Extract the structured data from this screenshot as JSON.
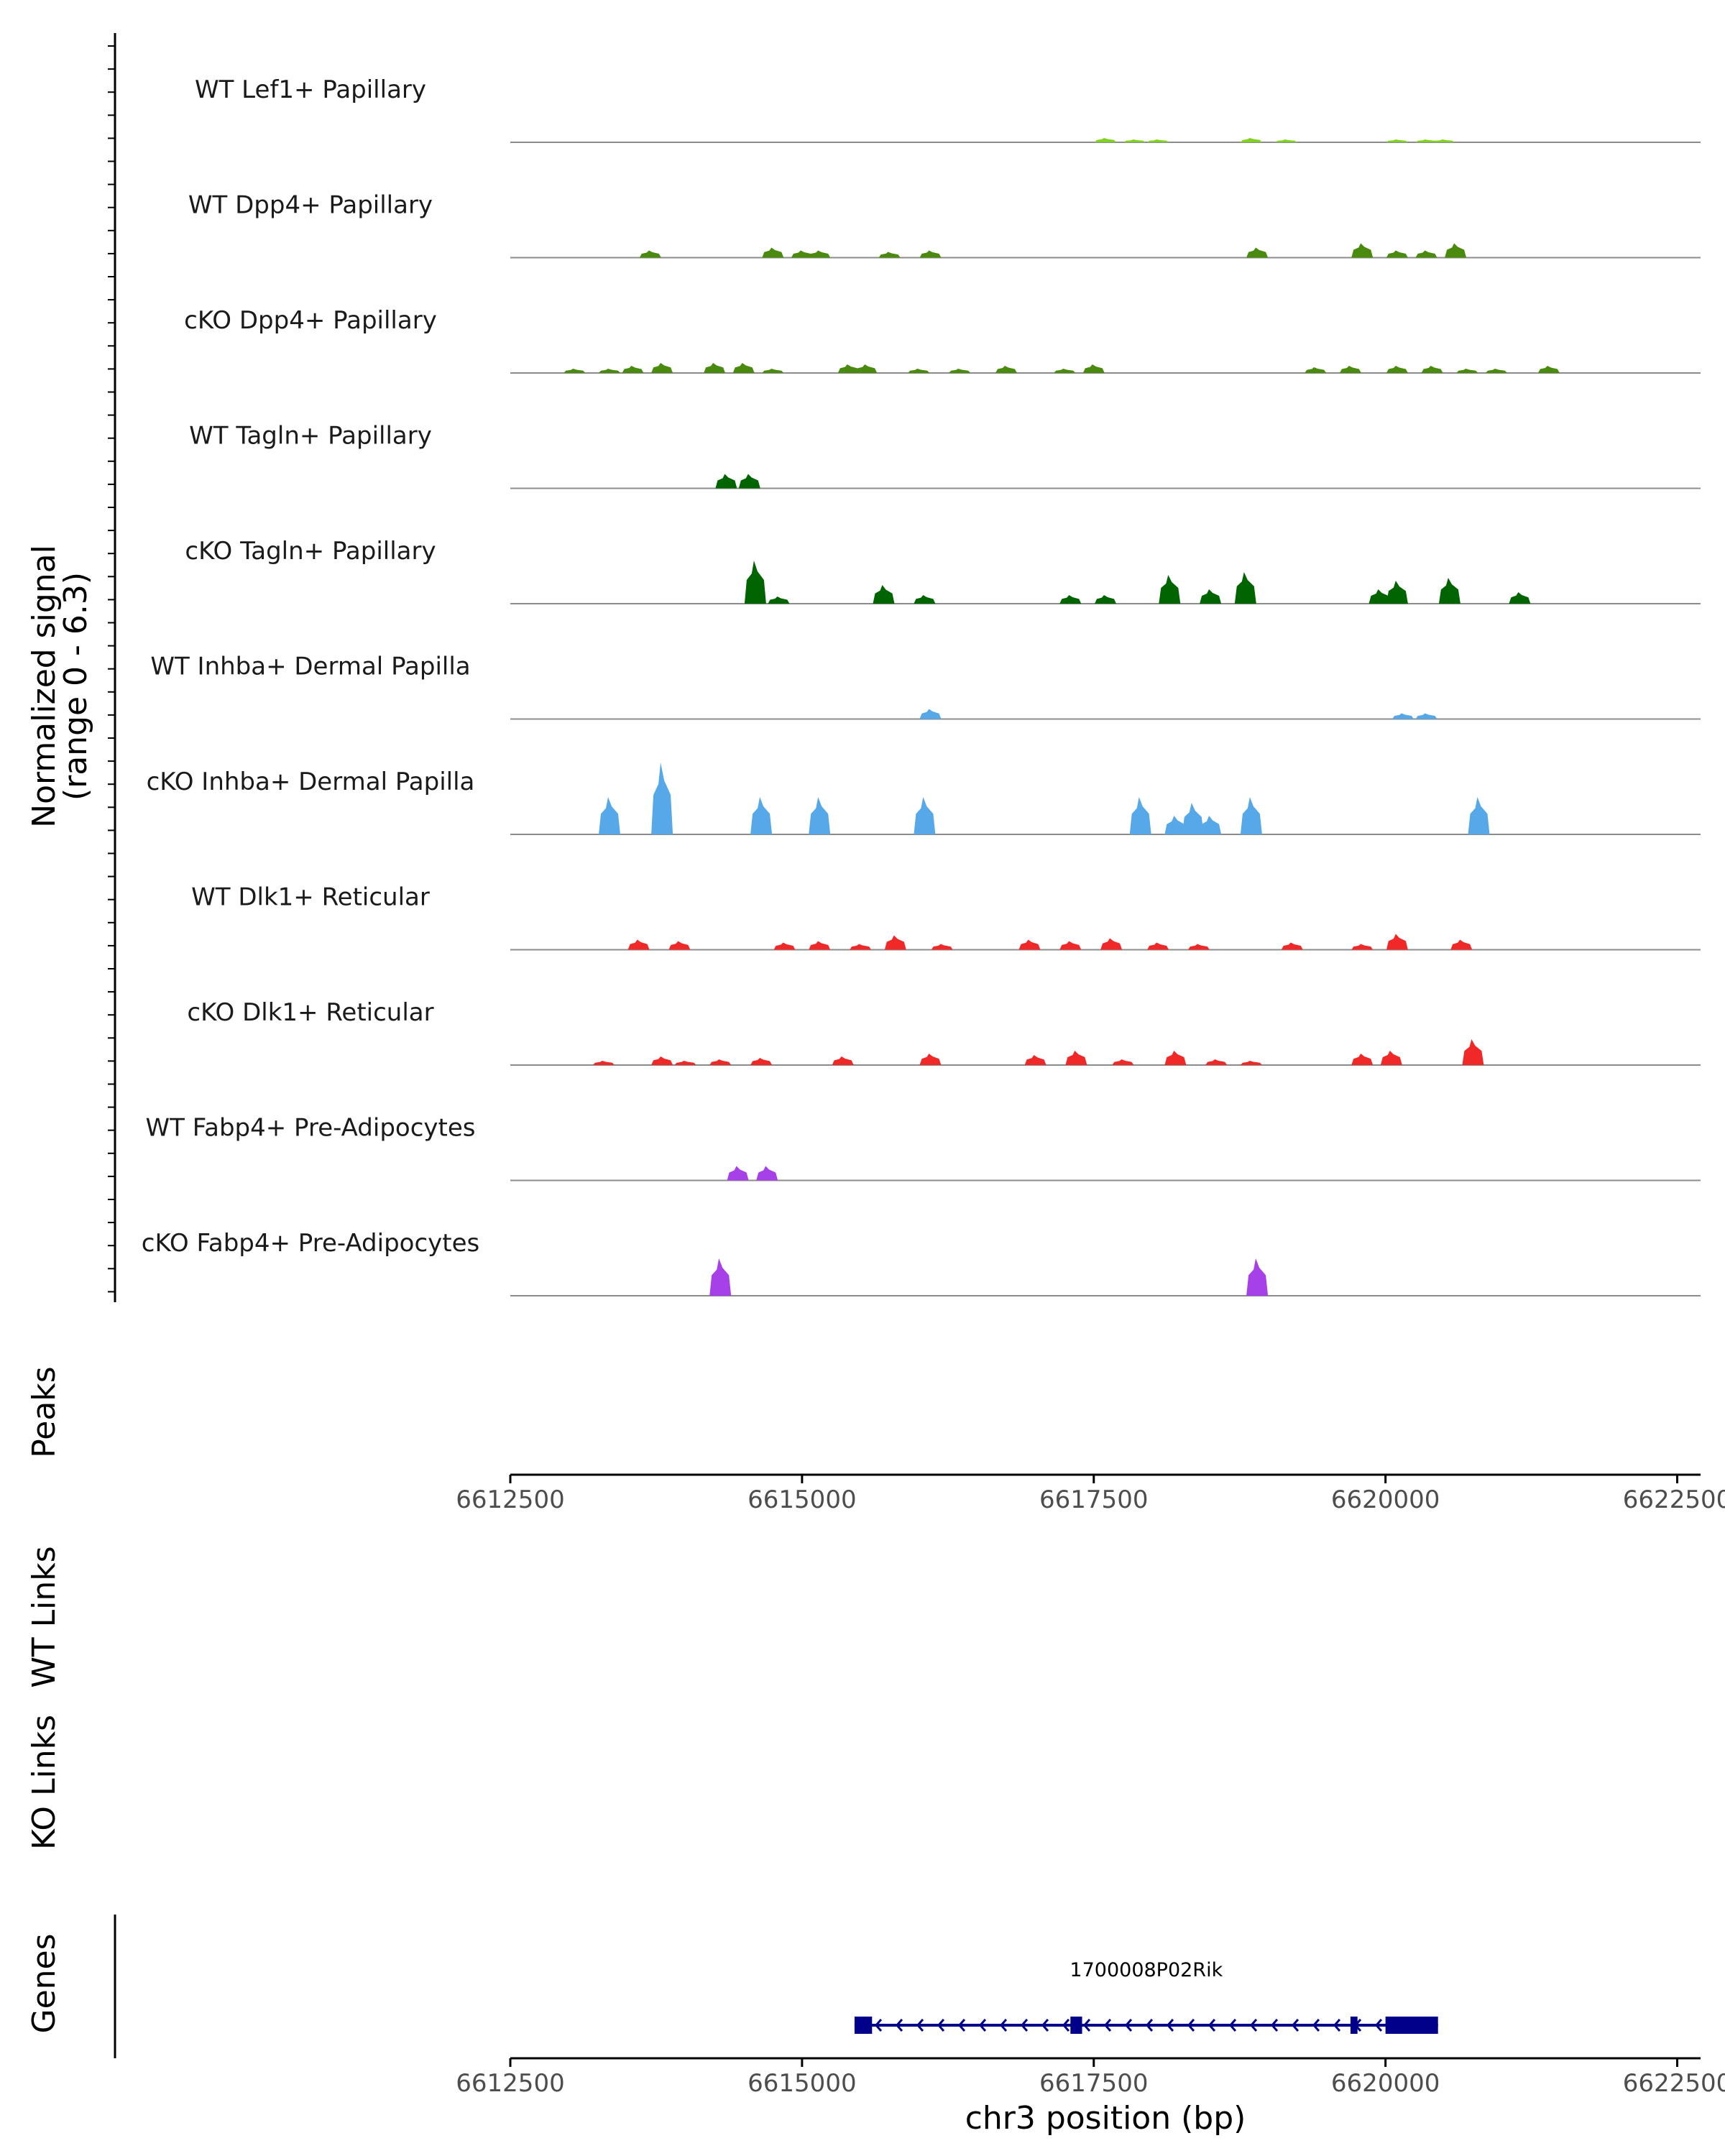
{
  "chart_data": {
    "type": "area",
    "title": "",
    "chromosome": "chr3",
    "xlabel": "chr3 position (bp)",
    "xlim": [
      6612500,
      6622700
    ],
    "xticks": [
      6612500,
      6615000,
      6617500,
      6620000,
      6622500
    ],
    "xtick_labels": [
      "6612500",
      "6615000",
      "6617500",
      "6620000",
      "6622500"
    ],
    "ylabel_line1": "Normalized signal",
    "ylabel_line2": "(range 0 - 6.3)",
    "ylim": [
      0,
      6.3
    ],
    "section_labels": {
      "peaks": "Peaks",
      "wt_links": "WT Links",
      "ko_links": "KO Links",
      "genes": "Genes"
    },
    "series": [
      {
        "name": "WT Lef1+ Papillary",
        "color": "#7FD320",
        "peaks": [
          [
            6617600,
            0.3
          ],
          [
            6617850,
            0.15
          ],
          [
            6618050,
            0.15
          ],
          [
            6618850,
            0.3
          ],
          [
            6619150,
            0.15
          ],
          [
            6620100,
            0.15
          ],
          [
            6620350,
            0.15
          ],
          [
            6620500,
            0.15
          ]
        ]
      },
      {
        "name": "WT Dpp4+ Papillary",
        "color": "#4A8A0E",
        "peaks": [
          [
            6613700,
            0.5
          ],
          [
            6614750,
            0.7
          ],
          [
            6615000,
            0.5
          ],
          [
            6615150,
            0.5
          ],
          [
            6615750,
            0.4
          ],
          [
            6616100,
            0.5
          ],
          [
            6618900,
            0.7
          ],
          [
            6619800,
            1.0
          ],
          [
            6620100,
            0.5
          ],
          [
            6620350,
            0.5
          ],
          [
            6620600,
            1.0
          ]
        ]
      },
      {
        "name": "cKO Dpp4+ Papillary",
        "color": "#4A8A0E",
        "peaks": [
          [
            6613050,
            0.3
          ],
          [
            6613350,
            0.3
          ],
          [
            6613550,
            0.5
          ],
          [
            6613800,
            0.7
          ],
          [
            6614250,
            0.7
          ],
          [
            6614500,
            0.7
          ],
          [
            6614750,
            0.3
          ],
          [
            6615400,
            0.6
          ],
          [
            6615550,
            0.6
          ],
          [
            6616000,
            0.3
          ],
          [
            6616350,
            0.3
          ],
          [
            6616750,
            0.5
          ],
          [
            6617250,
            0.3
          ],
          [
            6617500,
            0.6
          ],
          [
            6619400,
            0.4
          ],
          [
            6619700,
            0.5
          ],
          [
            6620100,
            0.5
          ],
          [
            6620400,
            0.5
          ],
          [
            6620700,
            0.3
          ],
          [
            6620950,
            0.3
          ],
          [
            6621400,
            0.5
          ]
        ]
      },
      {
        "name": "WT Tagln+ Papillary",
        "color": "#006400",
        "peaks": [
          [
            6614350,
            1.0
          ],
          [
            6614550,
            1.0
          ]
        ]
      },
      {
        "name": "cKO Tagln+ Papillary",
        "color": "#006400",
        "peaks": [
          [
            6614600,
            3.0
          ],
          [
            6614800,
            0.5
          ],
          [
            6615700,
            1.3
          ],
          [
            6616050,
            0.6
          ],
          [
            6617300,
            0.6
          ],
          [
            6617600,
            0.6
          ],
          [
            6618150,
            2.0
          ],
          [
            6618500,
            1.0
          ],
          [
            6618800,
            2.2
          ],
          [
            6619950,
            1.0
          ],
          [
            6620100,
            1.6
          ],
          [
            6620550,
            1.8
          ],
          [
            6621150,
            0.8
          ]
        ]
      },
      {
        "name": "WT Inhba+ Dermal Papilla",
        "color": "#56A8E8",
        "peaks": [
          [
            6616100,
            0.7
          ],
          [
            6620150,
            0.4
          ],
          [
            6620350,
            0.4
          ]
        ]
      },
      {
        "name": "cKO Inhba+ Dermal Papilla",
        "color": "#56A8E8",
        "peaks": [
          [
            6613350,
            2.6
          ],
          [
            6613800,
            5.0
          ],
          [
            6614650,
            2.6
          ],
          [
            6615150,
            2.6
          ],
          [
            6616050,
            2.6
          ],
          [
            6617900,
            2.6
          ],
          [
            6618200,
            1.3
          ],
          [
            6618350,
            2.2
          ],
          [
            6618500,
            1.3
          ],
          [
            6618850,
            2.6
          ],
          [
            6620800,
            2.6
          ]
        ]
      },
      {
        "name": "WT Dlk1+ Reticular",
        "color": "#F02828",
        "peaks": [
          [
            6613600,
            0.7
          ],
          [
            6613950,
            0.6
          ],
          [
            6614850,
            0.5
          ],
          [
            6615150,
            0.6
          ],
          [
            6615500,
            0.4
          ],
          [
            6615800,
            1.0
          ],
          [
            6616200,
            0.4
          ],
          [
            6616950,
            0.7
          ],
          [
            6617300,
            0.6
          ],
          [
            6617650,
            0.8
          ],
          [
            6618050,
            0.5
          ],
          [
            6618400,
            0.4
          ],
          [
            6619200,
            0.5
          ],
          [
            6619800,
            0.4
          ],
          [
            6620100,
            1.1
          ],
          [
            6620650,
            0.7
          ]
        ]
      },
      {
        "name": "cKO Dlk1+ Reticular",
        "color": "#F02828",
        "peaks": [
          [
            6613300,
            0.3
          ],
          [
            6613800,
            0.6
          ],
          [
            6614000,
            0.3
          ],
          [
            6614300,
            0.4
          ],
          [
            6614650,
            0.5
          ],
          [
            6615350,
            0.6
          ],
          [
            6616100,
            0.8
          ],
          [
            6617000,
            0.7
          ],
          [
            6617350,
            1.0
          ],
          [
            6617750,
            0.4
          ],
          [
            6618200,
            1.0
          ],
          [
            6618550,
            0.4
          ],
          [
            6618850,
            0.3
          ],
          [
            6619800,
            0.8
          ],
          [
            6620050,
            1.0
          ],
          [
            6620750,
            1.8
          ]
        ]
      },
      {
        "name": "WT Fabp4+ Pre-Adipocytes",
        "color": "#A640E8",
        "peaks": [
          [
            6614450,
            1.0
          ],
          [
            6614700,
            1.0
          ]
        ]
      },
      {
        "name": "cKO Fabp4+ Pre-Adipocytes",
        "color": "#A640E8",
        "peaks": [
          [
            6614300,
            2.6
          ],
          [
            6618900,
            2.6
          ]
        ]
      }
    ],
    "gene": {
      "name": "1700008P02Rik",
      "strand": "-",
      "start": 6615450,
      "end": 6620450,
      "exons": [
        [
          6615450,
          6615600
        ],
        [
          6617300,
          6617400
        ],
        [
          6619700,
          6619760
        ],
        [
          6620000,
          6620450
        ]
      ]
    }
  }
}
